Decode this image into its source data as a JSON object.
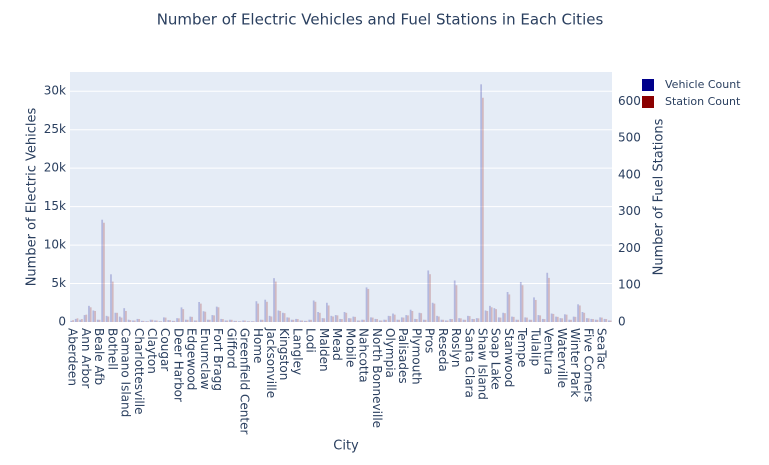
{
  "chart_data": {
    "type": "bar",
    "title": "Number of Electric Vehicles and Fuel Stations in Each Cities",
    "x_label": "City",
    "y_label": "Number of Electric Vehicles",
    "y2_label": "Number of Fuel Stations",
    "categories": [
      "Aberdeen",
      null,
      null,
      "Ann Arbor",
      null,
      null,
      "Beale Afb",
      null,
      null,
      "Bothell",
      null,
      null,
      "Camano Island",
      null,
      null,
      "Charlottesville",
      null,
      null,
      "Clayton",
      null,
      null,
      "Cougar",
      null,
      null,
      "Deer Harbor",
      null,
      null,
      "Edgewood",
      null,
      null,
      "Enumclaw",
      null,
      null,
      "Fort Bragg",
      null,
      null,
      "Gifford",
      null,
      null,
      "Greenfield Center",
      null,
      null,
      "Home",
      null,
      null,
      "Jacksonville",
      null,
      null,
      "Kingston",
      null,
      null,
      "Langley",
      null,
      null,
      "Lodi",
      null,
      null,
      "Malden",
      null,
      null,
      "Mead",
      null,
      null,
      "Mobile",
      null,
      null,
      "Nahcotta",
      null,
      null,
      "North Bonneville",
      null,
      null,
      "Olympia",
      null,
      null,
      "Palisades",
      null,
      null,
      "Plymouth",
      null,
      null,
      "Pros",
      null,
      null,
      "Reseda",
      null,
      null,
      "Roslyn",
      null,
      null,
      "Santa Clara",
      null,
      null,
      "Shaw Island",
      null,
      null,
      "Soap Lake",
      null,
      null,
      "Stanwood",
      null,
      null,
      "Tempe",
      null,
      null,
      "Tulalip",
      null,
      null,
      "Ventura",
      null,
      null,
      "Waterville",
      null,
      null,
      "Winter Park",
      null,
      null,
      "Five Corners",
      null,
      null,
      "SeaTac",
      null,
      null
    ],
    "series": [
      {
        "name": "Vehicle Count",
        "color": "#00008b",
        "values": [
          150,
          400,
          300,
          900,
          2100,
          1500,
          300,
          13300,
          800,
          6200,
          1200,
          700,
          1800,
          300,
          200,
          400,
          150,
          100,
          300,
          200,
          100,
          600,
          250,
          150,
          500,
          1900,
          300,
          700,
          200,
          2600,
          1400,
          300,
          900,
          2000,
          400,
          200,
          300,
          150,
          100,
          200,
          100,
          100,
          2700,
          300,
          2900,
          800,
          5700,
          1500,
          1200,
          600,
          300,
          400,
          200,
          150,
          300,
          2800,
          1300,
          500,
          2500,
          800,
          900,
          400,
          1300,
          500,
          700,
          200,
          300,
          4500,
          600,
          400,
          200,
          300,
          800,
          1100,
          300,
          600,
          900,
          1600,
          400,
          1200,
          300,
          6700,
          2500,
          800,
          300,
          200,
          400,
          5400,
          500,
          300,
          800,
          400,
          500,
          30900,
          1500,
          2100,
          1800,
          600,
          1200,
          3900,
          700,
          300,
          5200,
          600,
          300,
          3200,
          900,
          400,
          6400,
          1100,
          700,
          500,
          1000,
          300,
          700,
          2300,
          1300,
          500,
          400,
          300,
          600,
          400,
          200
        ]
      },
      {
        "name": "Station Count",
        "color": "#8b0000",
        "axis": "y2",
        "values": [
          5,
          10,
          8,
          20,
          40,
          30,
          6,
          270,
          15,
          110,
          25,
          12,
          30,
          5,
          4,
          8,
          3,
          2,
          6,
          4,
          2,
          12,
          5,
          3,
          10,
          35,
          6,
          14,
          4,
          50,
          28,
          6,
          18,
          40,
          8,
          4,
          6,
          3,
          2,
          4,
          2,
          2,
          50,
          6,
          55,
          15,
          110,
          30,
          24,
          12,
          6,
          8,
          4,
          3,
          6,
          55,
          25,
          10,
          45,
          15,
          18,
          8,
          25,
          10,
          14,
          4,
          6,
          90,
          12,
          8,
          4,
          6,
          16,
          20,
          6,
          12,
          18,
          30,
          8,
          24,
          6,
          130,
          50,
          15,
          6,
          4,
          8,
          100,
          10,
          6,
          16,
          8,
          10,
          610,
          30,
          40,
          35,
          12,
          24,
          75,
          14,
          6,
          100,
          12,
          6,
          60,
          18,
          8,
          120,
          22,
          14,
          10,
          20,
          6,
          14,
          45,
          25,
          10,
          8,
          6,
          12,
          8,
          4
        ]
      }
    ],
    "ylim": [
      0,
      32500
    ],
    "yticks": [
      0,
      {
        "value": 5000,
        "label": "5k"
      },
      {
        "value": 10000,
        "label": "10k"
      },
      {
        "value": 15000,
        "label": "15k"
      },
      {
        "value": 20000,
        "label": "20k"
      },
      {
        "value": 25000,
        "label": "25k"
      },
      {
        "value": 30000,
        "label": "30k"
      }
    ],
    "y2lim": [
      0,
      680
    ],
    "y2ticks": [
      0,
      100,
      200,
      300,
      400,
      500,
      600
    ],
    "grid": true
  }
}
